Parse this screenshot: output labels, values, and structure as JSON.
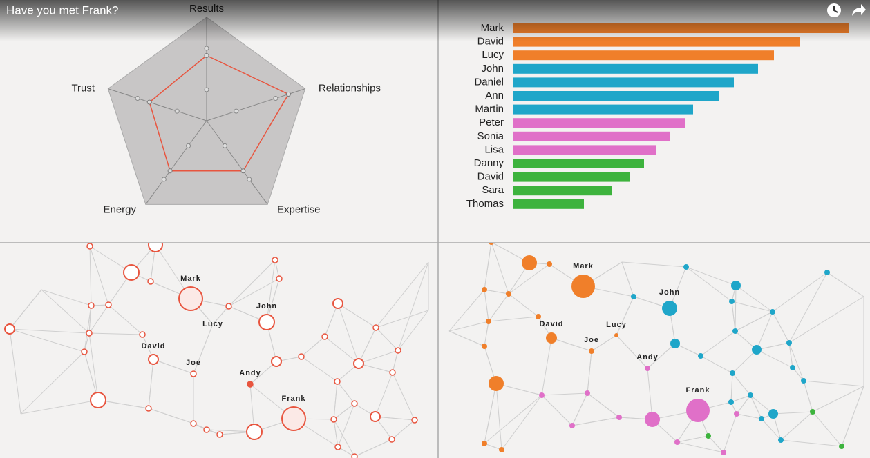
{
  "header": {
    "title": "Have you met Frank?"
  },
  "chart_data": [
    {
      "type": "radar",
      "axes": [
        "Results",
        "Relationships",
        "Expertise",
        "Energy",
        "Trust"
      ],
      "values": [
        0.63,
        0.83,
        0.6,
        0.6,
        0.58
      ],
      "rlim": [
        0,
        1
      ],
      "rticks": [
        0.3,
        0.7
      ],
      "color": "#e8553f"
    },
    {
      "type": "bar",
      "orientation": "horizontal",
      "categories": [
        "Mark",
        "David",
        "Lucy",
        "John",
        "Daniel",
        "Ann",
        "Martin",
        "Peter",
        "Sonia",
        "Lisa",
        "Danny",
        "David",
        "Sara",
        "Thomas"
      ],
      "values": [
        486,
        415,
        378,
        355,
        320,
        299,
        261,
        249,
        228,
        208,
        190,
        170,
        143,
        103
      ],
      "colors": [
        "#f07f2a",
        "#f07f2a",
        "#f07f2a",
        "#1fa6c9",
        "#1fa6c9",
        "#1fa6c9",
        "#1fa6c9",
        "#e070c8",
        "#e070c8",
        "#e070c8",
        "#3db33d",
        "#3db33d",
        "#3db33d",
        "#3db33d"
      ]
    }
  ],
  "network_left": {
    "labels": [
      "Mark",
      "Lucy",
      "John",
      "David",
      "Joe",
      "Andy",
      "Frank"
    ]
  },
  "network_right": {
    "labels": [
      "Mark",
      "John",
      "David",
      "Lucy",
      "Joe",
      "Andy",
      "Frank"
    ]
  }
}
